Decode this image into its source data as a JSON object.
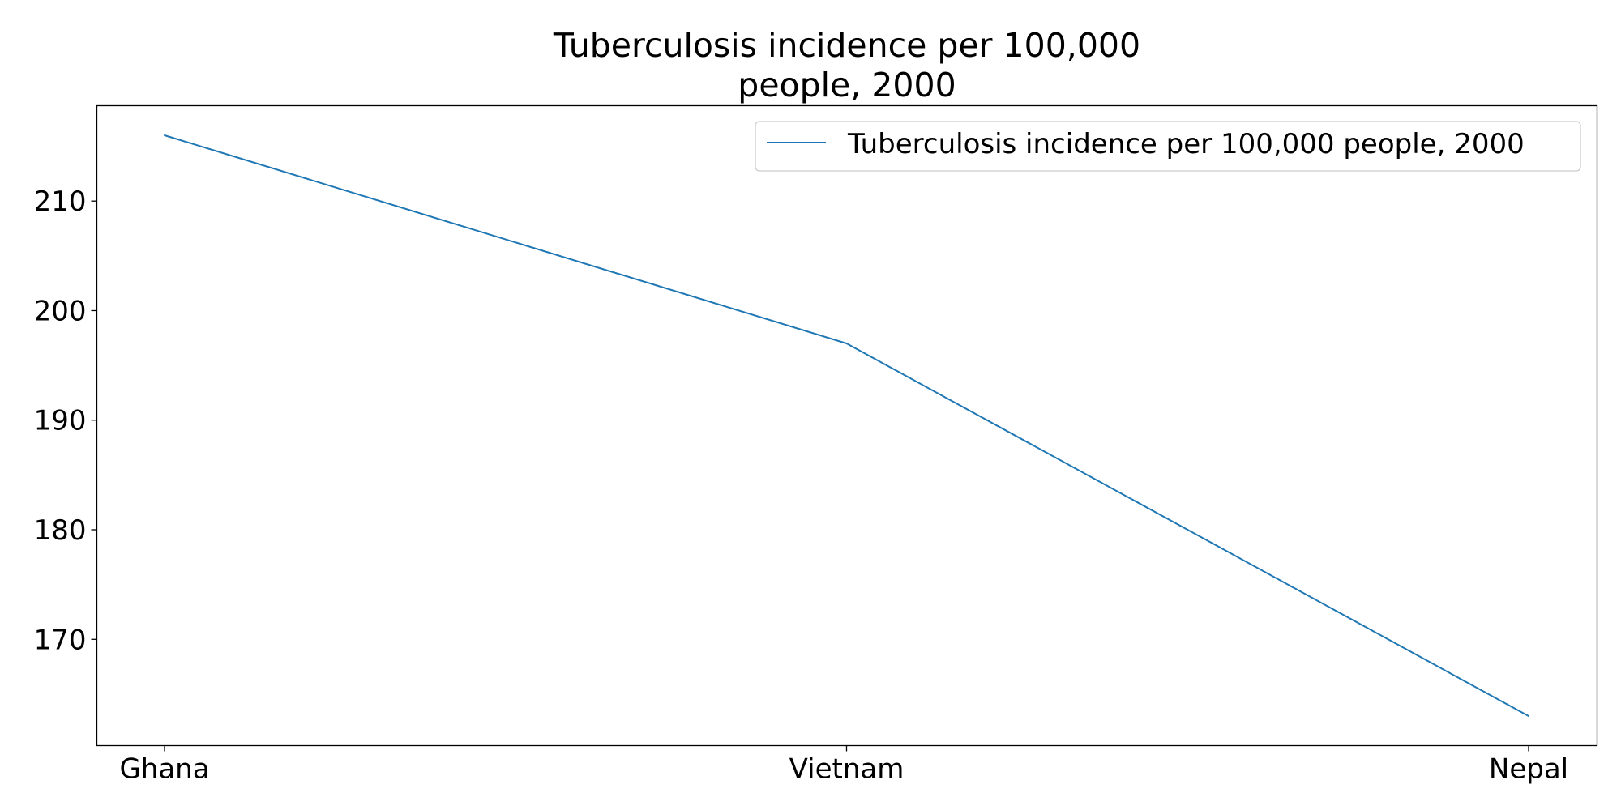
{
  "chart_data": {
    "type": "line",
    "title_lines": [
      "Tuberculosis incidence per 100,000",
      "people, 2000"
    ],
    "categories": [
      "Ghana",
      "Vietnam",
      "Nepal"
    ],
    "series": [
      {
        "name": "Tuberculosis incidence per 100,000 people, 2000",
        "values": [
          216,
          197,
          163
        ],
        "color": "#1f77b4"
      }
    ],
    "ylim": [
      160.3,
      218.7
    ],
    "yticks": [
      170,
      180,
      190,
      200,
      210
    ],
    "xlabel": "",
    "ylabel": "",
    "grid": false,
    "legend": "top-right"
  }
}
